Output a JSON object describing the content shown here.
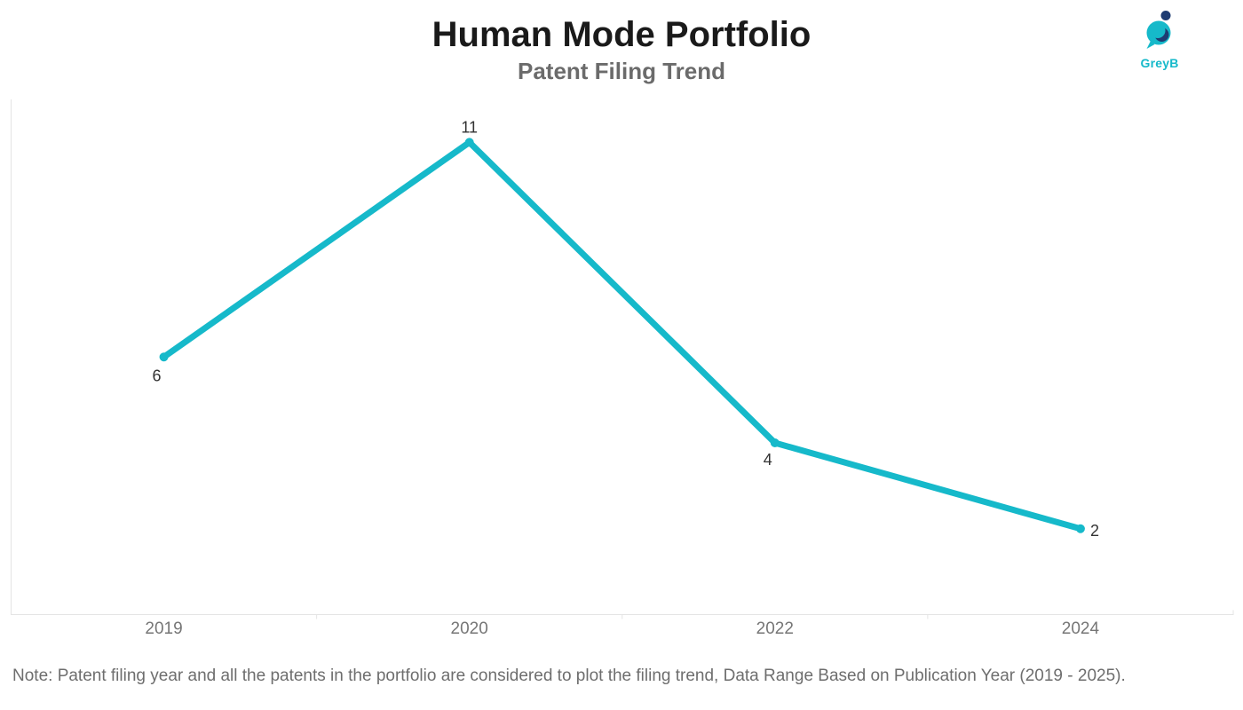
{
  "header": {
    "title": "Human Mode Portfolio",
    "subtitle": "Patent Filing Trend"
  },
  "logo": {
    "text": "GreyB",
    "cyan": "#16b9ca",
    "navy": "#1e3c72"
  },
  "chart_data": {
    "type": "line",
    "title": "Human Mode Portfolio",
    "subtitle": "Patent Filing Trend",
    "categories": [
      "2019",
      "2020",
      "2022",
      "2024"
    ],
    "values": [
      6,
      11,
      4,
      2
    ],
    "xlabel": "",
    "ylabel": "",
    "ylim": [
      0,
      12
    ],
    "grid": false,
    "legend": "none",
    "data_labels": true,
    "line_color": "#16b9ca",
    "axis_color": "#e4e4e4",
    "axis_label_color": "#767676",
    "data_label_color": "#333333"
  },
  "footnote": {
    "text": "Note: Patent filing year and all the patents in the portfolio are considered to plot the filing trend, Data Range Based on Publication Year (2019 - 2025)."
  }
}
